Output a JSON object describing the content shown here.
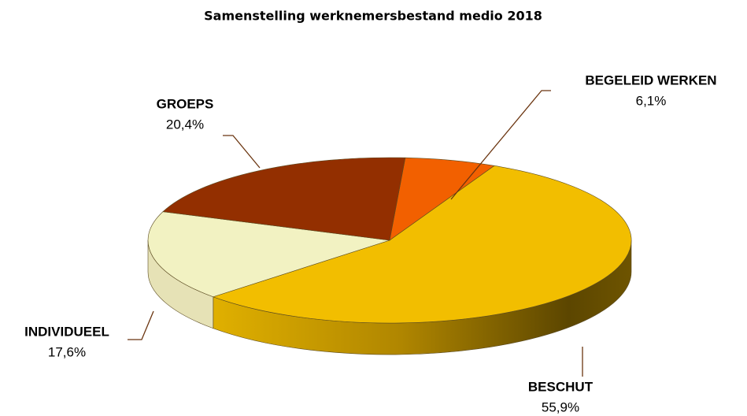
{
  "chart_data": {
    "type": "pie3d",
    "title": "Samenstelling werknemersbestand medio 2018",
    "categories": [
      "BEGELEID WERKEN",
      "BESCHUT",
      "INDIVIDUEEL",
      "GROEPS"
    ],
    "values": [
      6.1,
      55.9,
      17.6,
      20.4
    ],
    "value_labels": [
      "6,1%",
      "55,9%",
      "17,6%",
      "20,4%"
    ],
    "colors": [
      "#f26000",
      "#f2be00",
      "#f2f2c2",
      "#932f00"
    ]
  }
}
